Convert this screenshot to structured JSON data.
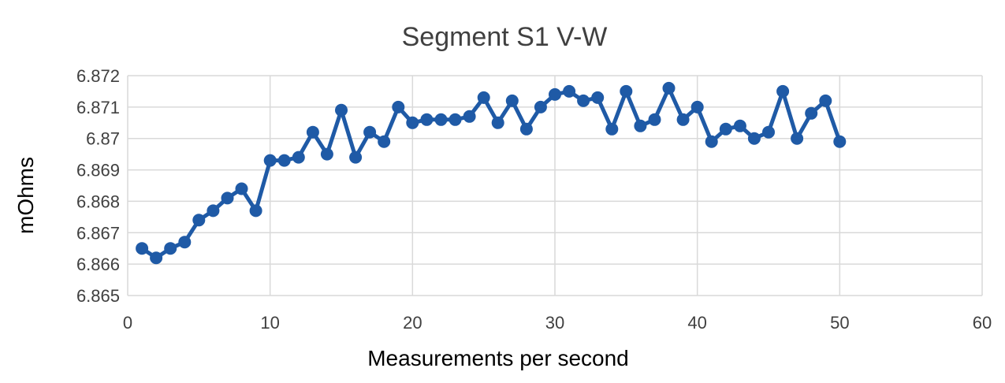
{
  "chart_data": {
    "type": "scatter",
    "title": "Segment S1 V-W",
    "xlabel": "Measurements per second",
    "ylabel": "mOhms",
    "xlim": [
      0,
      60
    ],
    "ylim": [
      6.865,
      6.872
    ],
    "x_ticks": [
      "0",
      "10",
      "20",
      "30",
      "40",
      "50",
      "60"
    ],
    "y_ticks": [
      "6.865",
      "6.866",
      "6.867",
      "6.868",
      "6.869",
      "6.87",
      "6.871",
      "6.872"
    ],
    "grid": true,
    "legend": "none",
    "series": [
      {
        "color": "#1f5aa6",
        "marker": "circle",
        "line": true,
        "points": [
          [
            1,
            6.8665
          ],
          [
            2,
            6.8662
          ],
          [
            3,
            6.8665
          ],
          [
            4,
            6.8667
          ],
          [
            5,
            6.8674
          ],
          [
            6,
            6.8677
          ],
          [
            7,
            6.8681
          ],
          [
            8,
            6.8684
          ],
          [
            9,
            6.8677
          ],
          [
            10,
            6.8693
          ],
          [
            11,
            6.8693
          ],
          [
            12,
            6.8694
          ],
          [
            13,
            6.8702
          ],
          [
            14,
            6.8695
          ],
          [
            15,
            6.8709
          ],
          [
            16,
            6.8694
          ],
          [
            17,
            6.8702
          ],
          [
            18,
            6.8699
          ],
          [
            19,
            6.871
          ],
          [
            20,
            6.8705
          ],
          [
            21,
            6.8706
          ],
          [
            22,
            6.8706
          ],
          [
            23,
            6.8706
          ],
          [
            24,
            6.8707
          ],
          [
            25,
            6.8713
          ],
          [
            26,
            6.8705
          ],
          [
            27,
            6.8712
          ],
          [
            28,
            6.8703
          ],
          [
            29,
            6.871
          ],
          [
            30,
            6.8714
          ],
          [
            31,
            6.8715
          ],
          [
            32,
            6.8712
          ],
          [
            33,
            6.8713
          ],
          [
            34,
            6.8703
          ],
          [
            35,
            6.8715
          ],
          [
            36,
            6.8704
          ],
          [
            37,
            6.8706
          ],
          [
            38,
            6.8716
          ],
          [
            39,
            6.8706
          ],
          [
            40,
            6.871
          ],
          [
            41,
            6.8699
          ],
          [
            42,
            6.8703
          ],
          [
            43,
            6.8704
          ],
          [
            44,
            6.87
          ],
          [
            45,
            6.8702
          ],
          [
            46,
            6.8715
          ],
          [
            47,
            6.87
          ],
          [
            48,
            6.8708
          ],
          [
            49,
            6.8712
          ],
          [
            50,
            6.8699
          ]
        ]
      }
    ]
  }
}
